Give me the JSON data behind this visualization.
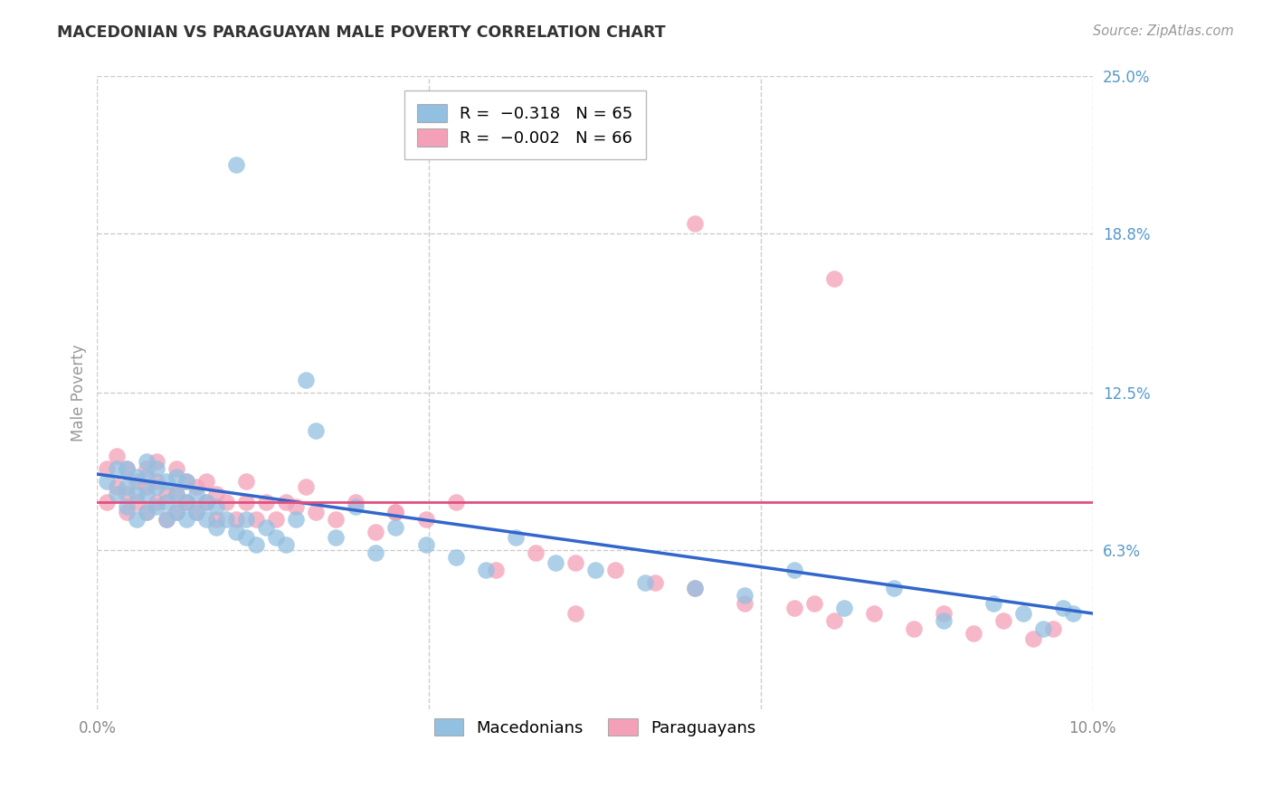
{
  "title": "MACEDONIAN VS PARAGUAYAN MALE POVERTY CORRELATION CHART",
  "source": "Source: ZipAtlas.com",
  "ylabel": "Male Poverty",
  "xlim": [
    0.0,
    0.1
  ],
  "ylim": [
    0.0,
    0.25
  ],
  "xtick_labels": [
    "0.0%",
    "10.0%"
  ],
  "xtick_positions": [
    0.0,
    0.1
  ],
  "ytick_labels": [
    "25.0%",
    "18.8%",
    "12.5%",
    "6.3%"
  ],
  "ytick_positions": [
    0.25,
    0.188,
    0.125,
    0.063
  ],
  "blue_color": "#92C0E0",
  "pink_color": "#F4A0B8",
  "blue_line_color": "#3366CC",
  "pink_line_color": "#E05080",
  "background_color": "#FFFFFF",
  "grid_color": "#CCCCCC",
  "title_color": "#333333",
  "right_label_color": "#5599CC",
  "mac_x": [
    0.001,
    0.002,
    0.002,
    0.003,
    0.003,
    0.003,
    0.004,
    0.004,
    0.004,
    0.005,
    0.005,
    0.005,
    0.005,
    0.006,
    0.006,
    0.006,
    0.007,
    0.007,
    0.007,
    0.008,
    0.008,
    0.008,
    0.009,
    0.009,
    0.009,
    0.01,
    0.01,
    0.011,
    0.011,
    0.012,
    0.012,
    0.013,
    0.014,
    0.015,
    0.015,
    0.016,
    0.017,
    0.018,
    0.019,
    0.02,
    0.021,
    0.022,
    0.024,
    0.026,
    0.028,
    0.03,
    0.033,
    0.036,
    0.039,
    0.042,
    0.046,
    0.05,
    0.055,
    0.06,
    0.065,
    0.07,
    0.075,
    0.08,
    0.085,
    0.09,
    0.093,
    0.095,
    0.097,
    0.014,
    0.098
  ],
  "mac_y": [
    0.09,
    0.085,
    0.095,
    0.08,
    0.088,
    0.095,
    0.075,
    0.085,
    0.092,
    0.078,
    0.085,
    0.092,
    0.098,
    0.08,
    0.088,
    0.095,
    0.075,
    0.082,
    0.09,
    0.078,
    0.085,
    0.092,
    0.075,
    0.082,
    0.09,
    0.078,
    0.085,
    0.075,
    0.082,
    0.072,
    0.08,
    0.075,
    0.07,
    0.068,
    0.075,
    0.065,
    0.072,
    0.068,
    0.065,
    0.075,
    0.13,
    0.11,
    0.068,
    0.08,
    0.062,
    0.072,
    0.065,
    0.06,
    0.055,
    0.068,
    0.058,
    0.055,
    0.05,
    0.048,
    0.045,
    0.055,
    0.04,
    0.048,
    0.035,
    0.042,
    0.038,
    0.032,
    0.04,
    0.215,
    0.038
  ],
  "par_x": [
    0.001,
    0.001,
    0.002,
    0.002,
    0.003,
    0.003,
    0.003,
    0.004,
    0.004,
    0.005,
    0.005,
    0.005,
    0.006,
    0.006,
    0.006,
    0.007,
    0.007,
    0.008,
    0.008,
    0.008,
    0.009,
    0.009,
    0.01,
    0.01,
    0.011,
    0.011,
    0.012,
    0.012,
    0.013,
    0.014,
    0.015,
    0.015,
    0.016,
    0.017,
    0.018,
    0.019,
    0.02,
    0.021,
    0.022,
    0.024,
    0.026,
    0.028,
    0.03,
    0.033,
    0.036,
    0.04,
    0.044,
    0.048,
    0.052,
    0.056,
    0.06,
    0.065,
    0.07,
    0.072,
    0.074,
    0.078,
    0.082,
    0.085,
    0.088,
    0.091,
    0.094,
    0.096,
    0.06,
    0.074,
    0.048,
    0.03
  ],
  "par_y": [
    0.082,
    0.095,
    0.088,
    0.1,
    0.078,
    0.085,
    0.095,
    0.082,
    0.09,
    0.078,
    0.088,
    0.095,
    0.082,
    0.09,
    0.098,
    0.075,
    0.085,
    0.078,
    0.085,
    0.095,
    0.082,
    0.09,
    0.078,
    0.088,
    0.082,
    0.09,
    0.075,
    0.085,
    0.082,
    0.075,
    0.09,
    0.082,
    0.075,
    0.082,
    0.075,
    0.082,
    0.08,
    0.088,
    0.078,
    0.075,
    0.082,
    0.07,
    0.078,
    0.075,
    0.082,
    0.055,
    0.062,
    0.058,
    0.055,
    0.05,
    0.048,
    0.042,
    0.04,
    0.042,
    0.035,
    0.038,
    0.032,
    0.038,
    0.03,
    0.035,
    0.028,
    0.032,
    0.192,
    0.17,
    0.038,
    0.078
  ],
  "mac_line_x0": 0.0,
  "mac_line_y0": 0.093,
  "mac_line_x1": 0.1,
  "mac_line_y1": 0.038,
  "par_line_x0": 0.0,
  "par_line_y0": 0.082,
  "par_line_x1": 0.1,
  "par_line_y1": 0.082
}
